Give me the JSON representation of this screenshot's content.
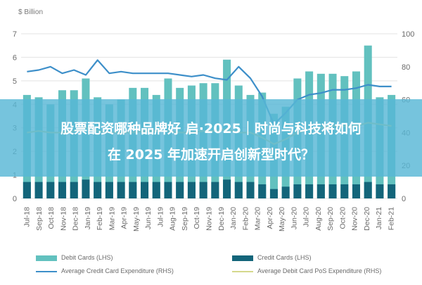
{
  "chart_data": {
    "type": "bar",
    "y_left_unit": "$ Billion",
    "y_left_ticks": [
      "0",
      "1",
      "2",
      "3",
      "4",
      "5",
      "6",
      "7"
    ],
    "y_right_ticks": [
      "0",
      "20",
      "40",
      "60",
      "80",
      "100"
    ],
    "ylim_left": [
      0,
      7
    ],
    "ylim_right": [
      0,
      100
    ],
    "categories": [
      "Jul-18",
      "Aug-18",
      "Sep-18",
      "Oct-18",
      "Nov-18",
      "Dec-18",
      "Jan-19",
      "Feb-19",
      "Mar-19",
      "Apr-19",
      "May-19",
      "Jun-19",
      "Jul-19",
      "Aug-19",
      "Sep-19",
      "Oct-19",
      "Nov-19",
      "Dec-19",
      "Jan-20",
      "Feb-20",
      "Mar-20",
      "Apr-20",
      "May-20",
      "Jun-20",
      "Jul-20",
      "Aug-20",
      "Sep-20",
      "Oct-20",
      "Nov-20",
      "Dec-20",
      "Jan-21",
      "Feb-21"
    ],
    "x_tick_labels": [
      "Jul-18",
      "Sep-18",
      "Oct-18",
      "Nov-18",
      "Dec-18",
      "Jan-19",
      "Feb-19",
      "Mar-19",
      "Apr-19",
      "May-19",
      "Jun-19",
      "Jul-19",
      "Aug-19",
      "Sep-19",
      "Oct-19",
      "Nov-19",
      "Dec-19",
      "Jan-20",
      "Feb-20",
      "Mar-20",
      "Apr-20",
      "May-20",
      "Jun-20",
      "Jul-20",
      "Aug-20",
      "Sep-20",
      "Oct-20",
      "Nov-20",
      "Dec-20",
      "Jan-21",
      "Feb-21"
    ],
    "series": [
      {
        "name": "Debit Cards (LHS)",
        "axis": "left",
        "kind": "bar",
        "color": "#62c1bf",
        "values": [
          4.4,
          4.3,
          4.0,
          4.6,
          4.6,
          5.1,
          4.3,
          4.0,
          4.2,
          4.7,
          4.7,
          4.4,
          5.1,
          4.7,
          4.8,
          4.9,
          4.9,
          5.9,
          4.8,
          4.4,
          4.5,
          3.6,
          3.9,
          5.1,
          5.4,
          5.3,
          5.3,
          5.2,
          5.4,
          6.5,
          4.3,
          4.4
        ]
      },
      {
        "name": "Credit Cards (LHS)",
        "axis": "left",
        "kind": "bar",
        "color": "#13657a",
        "values": [
          0.7,
          0.7,
          0.7,
          0.7,
          0.7,
          0.8,
          0.7,
          0.7,
          0.7,
          0.7,
          0.7,
          0.7,
          0.7,
          0.7,
          0.7,
          0.7,
          0.7,
          0.8,
          0.7,
          0.7,
          0.6,
          0.4,
          0.5,
          0.6,
          0.6,
          0.6,
          0.6,
          0.6,
          0.6,
          0.7,
          0.6,
          0.6
        ]
      },
      {
        "name": "Average Credit Card Expenditure (RHS)",
        "axis": "right",
        "kind": "line",
        "color": "#3d8fc9",
        "values": [
          77,
          78,
          80,
          76,
          78,
          75,
          84,
          76,
          77,
          76,
          76,
          76,
          76,
          75,
          74,
          75,
          73,
          72,
          80,
          73,
          62,
          45,
          52,
          60,
          63,
          64,
          66,
          66,
          67,
          69,
          68,
          68
        ]
      },
      {
        "name": "Average Debit Card PoS Expenditure (RHS)",
        "axis": "right",
        "kind": "line",
        "color": "#d5d88c",
        "values": [
          40,
          41,
          40,
          40,
          41,
          43,
          41,
          40,
          40,
          40,
          41,
          41,
          41,
          40,
          40,
          41,
          41,
          42,
          40,
          40,
          37,
          33,
          36,
          40,
          42,
          43,
          44,
          44,
          44,
          46,
          45,
          44
        ]
      }
    ]
  },
  "overlay": {
    "line1": "股票配资哪种品牌好 启·2025｜时尚与科技将如何",
    "line2": "在 2025 年加速开启创新型时代？"
  }
}
